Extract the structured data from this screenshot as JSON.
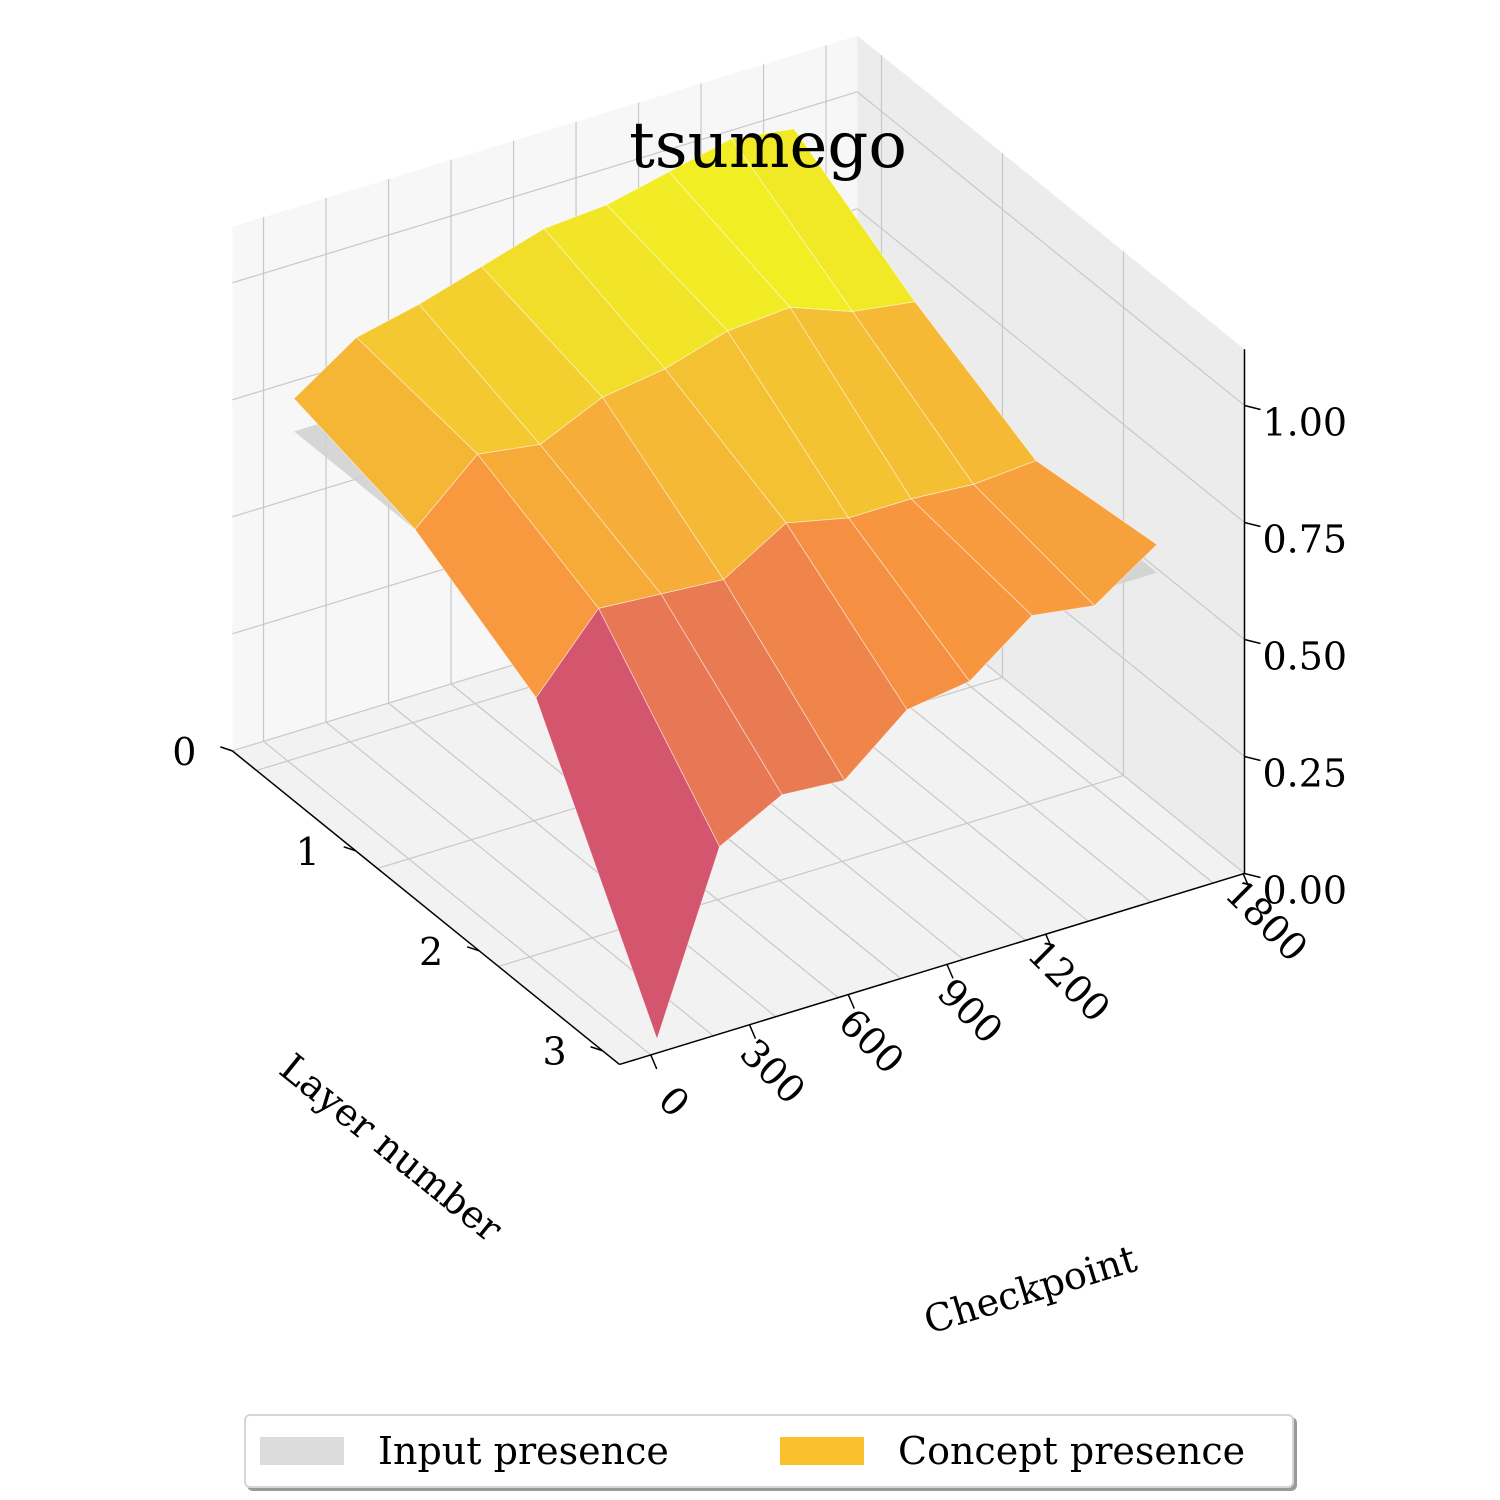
{
  "chart_data": {
    "type": "surface3d",
    "title": "tsumego",
    "xlabel": "Checkpoint",
    "ylabel": "Layer number",
    "zlabel": "",
    "x_ticks": [
      "0",
      "300",
      "600",
      "900",
      "1200",
      "1800"
    ],
    "y_ticks": [
      "0",
      "1",
      "2",
      "3"
    ],
    "z_ticks": [
      "0.00",
      "0.25",
      "0.50",
      "0.75",
      "1.00"
    ],
    "zlim": [
      0,
      1
    ],
    "grid": true,
    "legend_position": "bottom",
    "legend": [
      {
        "label": "Input presence",
        "color": "#dcdcdc"
      },
      {
        "label": "Concept presence",
        "color": "#fbc02d"
      }
    ],
    "series": [
      {
        "name": "Concept presence",
        "colormap": "plasma",
        "rows": [
          {
            "layer": 0,
            "x": [
              0,
              300,
              600,
              900,
              1200,
              1500,
              1800,
              2100,
              2400
            ],
            "z": [
              0.77,
              0.86,
              0.89,
              0.93,
              0.97,
              0.98,
              1.01,
              1.04,
              1.02
            ]
          },
          {
            "layer": 1,
            "x": [
              0,
              300,
              600,
              900,
              1200,
              1500,
              1800,
              2100,
              2400
            ],
            "z": [
              0.7,
              0.82,
              0.8,
              0.86,
              0.88,
              0.92,
              0.93,
              0.88,
              0.86
            ]
          },
          {
            "layer": 2,
            "x": [
              0,
              300,
              600,
              900,
              1200,
              1500,
              1800,
              2100,
              2400
            ],
            "z": [
              0.55,
              0.7,
              0.69,
              0.68,
              0.76,
              0.73,
              0.73,
              0.72,
              0.73
            ]
          },
          {
            "layer": 3,
            "x": [
              0,
              300,
              600,
              900,
              1200,
              1500,
              1800,
              2100,
              2400
            ],
            "z": [
              0.03,
              0.4,
              0.47,
              0.46,
              0.57,
              0.59,
              0.69,
              0.67,
              0.76
            ]
          }
        ]
      },
      {
        "name": "Input presence",
        "constant_z": 0.7,
        "color": "#d0d0d0"
      }
    ]
  }
}
